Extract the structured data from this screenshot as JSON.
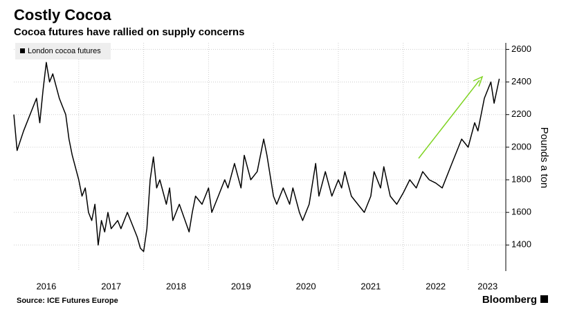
{
  "chart_data": {
    "type": "line",
    "title": "Costly Cocoa",
    "subtitle": "Cocoa futures have rallied on supply concerns",
    "ylabel": "Pounds a ton",
    "source": "Source: ICE Futures Europe",
    "brand": "Bloomberg",
    "legend": "top-left",
    "grid": true,
    "xlim": [
      2016,
      2023.58
    ],
    "ylim": [
      1240,
      2640
    ],
    "yticks": [
      1400,
      1600,
      1800,
      2000,
      2200,
      2400,
      2600
    ],
    "xgrid": [
      2017,
      2018,
      2019,
      2020,
      2021,
      2022,
      2023
    ],
    "xtick_labels": [
      {
        "value": 2016.5,
        "label": "2016"
      },
      {
        "value": 2017.5,
        "label": "2017"
      },
      {
        "value": 2018.5,
        "label": "2018"
      },
      {
        "value": 2019.5,
        "label": "2019"
      },
      {
        "value": 2020.5,
        "label": "2020"
      },
      {
        "value": 2021.5,
        "label": "2021"
      },
      {
        "value": 2022.5,
        "label": "2022"
      },
      {
        "value": 2023.3,
        "label": "2023"
      }
    ],
    "series": [
      {
        "name": "London cocoa futures",
        "color": "#000000",
        "x": [
          2016.0,
          2016.05,
          2016.15,
          2016.3,
          2016.35,
          2016.4,
          2016.45,
          2016.5,
          2016.55,
          2016.6,
          2016.7,
          2016.75,
          2016.8,
          2016.85,
          2016.9,
          2017.0,
          2017.05,
          2017.1,
          2017.15,
          2017.2,
          2017.25,
          2017.3,
          2017.35,
          2017.4,
          2017.45,
          2017.5,
          2017.6,
          2017.65,
          2017.75,
          2017.8,
          2017.9,
          2017.95,
          2018.0,
          2018.05,
          2018.1,
          2018.15,
          2018.2,
          2018.25,
          2018.35,
          2018.4,
          2018.45,
          2018.55,
          2018.7,
          2018.75,
          2018.8,
          2018.9,
          2019.0,
          2019.05,
          2019.15,
          2019.25,
          2019.3,
          2019.4,
          2019.5,
          2019.55,
          2019.65,
          2019.75,
          2019.85,
          2019.9,
          2020.0,
          2020.05,
          2020.15,
          2020.25,
          2020.3,
          2020.4,
          2020.45,
          2020.55,
          2020.65,
          2020.7,
          2020.8,
          2020.9,
          2021.0,
          2021.05,
          2021.1,
          2021.2,
          2021.3,
          2021.4,
          2021.5,
          2021.55,
          2021.65,
          2021.7,
          2021.8,
          2021.9,
          2022.0,
          2022.1,
          2022.2,
          2022.3,
          2022.4,
          2022.5,
          2022.6,
          2022.75,
          2022.8,
          2022.9,
          2023.0,
          2023.1,
          2023.15,
          2023.25,
          2023.35,
          2023.4,
          2023.48
        ],
        "values": [
          2200,
          1980,
          2100,
          2250,
          2300,
          2150,
          2350,
          2520,
          2400,
          2450,
          2300,
          2250,
          2200,
          2050,
          1950,
          1800,
          1700,
          1750,
          1600,
          1550,
          1650,
          1400,
          1550,
          1480,
          1600,
          1500,
          1550,
          1500,
          1600,
          1550,
          1450,
          1380,
          1360,
          1500,
          1800,
          1940,
          1750,
          1800,
          1650,
          1750,
          1550,
          1650,
          1480,
          1600,
          1700,
          1650,
          1750,
          1600,
          1700,
          1800,
          1750,
          1900,
          1750,
          1950,
          1800,
          1850,
          2050,
          1950,
          1700,
          1650,
          1750,
          1650,
          1750,
          1600,
          1550,
          1650,
          1900,
          1700,
          1850,
          1700,
          1800,
          1750,
          1850,
          1700,
          1650,
          1600,
          1700,
          1850,
          1750,
          1880,
          1700,
          1650,
          1720,
          1800,
          1750,
          1850,
          1800,
          1780,
          1750,
          1900,
          1950,
          2050,
          2000,
          2150,
          2100,
          2300,
          2400,
          2270,
          2420
        ]
      }
    ]
  }
}
